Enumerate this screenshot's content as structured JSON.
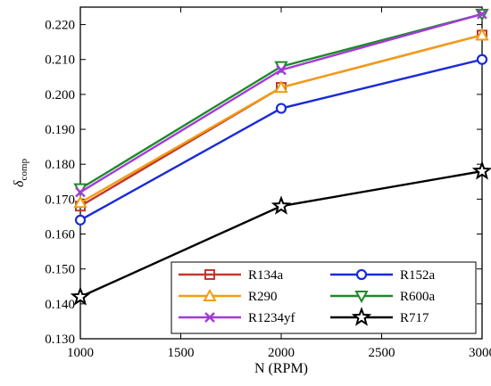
{
  "chart_data": {
    "type": "line",
    "x": [
      1000,
      2000,
      3000
    ],
    "xlabel": "N (RPM)",
    "ylabel_main": "δ",
    "ylabel_sub": "comp",
    "xlim": [
      1000,
      3000
    ],
    "ylim": [
      0.13,
      0.225
    ],
    "xticks": [
      "1000",
      "1500",
      "2000",
      "2500",
      "3000"
    ],
    "yticks": [
      "0.130",
      "0.140",
      "0.150",
      "0.160",
      "0.170",
      "0.180",
      "0.190",
      "0.200",
      "0.210",
      "0.220"
    ],
    "grid": false,
    "legend_position": "lower-right",
    "series": [
      {
        "name": "R134a",
        "values": [
          0.168,
          0.202,
          0.217
        ],
        "color": "#c0392b",
        "marker": "square"
      },
      {
        "name": "R152a",
        "values": [
          0.164,
          0.196,
          0.21
        ],
        "color": "#1a2bd6",
        "marker": "circle"
      },
      {
        "name": "R290",
        "values": [
          0.169,
          0.202,
          0.217
        ],
        "color": "#f39c12",
        "marker": "triangle-up"
      },
      {
        "name": "R600a",
        "values": [
          0.173,
          0.208,
          0.223
        ],
        "color": "#1e8a2b",
        "marker": "triangle-down"
      },
      {
        "name": "R1234yf",
        "values": [
          0.172,
          0.207,
          0.223
        ],
        "color": "#a23bd6",
        "marker": "x"
      },
      {
        "name": "R717",
        "values": [
          0.142,
          0.168,
          0.178
        ],
        "color": "#000000",
        "marker": "star"
      }
    ]
  }
}
